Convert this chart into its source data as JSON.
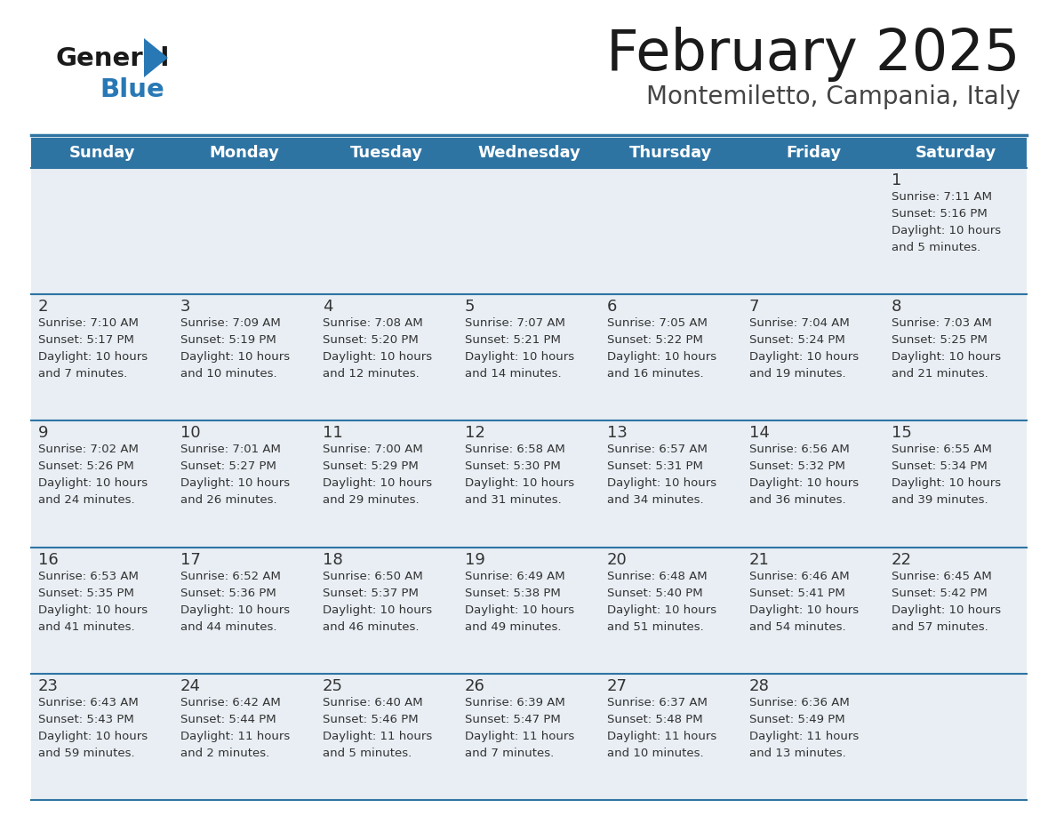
{
  "title": "February 2025",
  "subtitle": "Montemiletto, Campania, Italy",
  "header_bg": "#2e74a3",
  "header_text_color": "#ffffff",
  "day_names": [
    "Sunday",
    "Monday",
    "Tuesday",
    "Wednesday",
    "Thursday",
    "Friday",
    "Saturday"
  ],
  "bg_color": "#ffffff",
  "cell_bg": "#e8eef4",
  "row_line_color": "#2e74a3",
  "text_color": "#333333",
  "days": [
    {
      "day": 1,
      "col": 6,
      "row": 0,
      "sunrise": "7:11 AM",
      "sunset": "5:16 PM",
      "daylight_h": "10 hours",
      "daylight_m": "5 minutes."
    },
    {
      "day": 2,
      "col": 0,
      "row": 1,
      "sunrise": "7:10 AM",
      "sunset": "5:17 PM",
      "daylight_h": "10 hours",
      "daylight_m": "7 minutes."
    },
    {
      "day": 3,
      "col": 1,
      "row": 1,
      "sunrise": "7:09 AM",
      "sunset": "5:19 PM",
      "daylight_h": "10 hours",
      "daylight_m": "10 minutes."
    },
    {
      "day": 4,
      "col": 2,
      "row": 1,
      "sunrise": "7:08 AM",
      "sunset": "5:20 PM",
      "daylight_h": "10 hours",
      "daylight_m": "12 minutes."
    },
    {
      "day": 5,
      "col": 3,
      "row": 1,
      "sunrise": "7:07 AM",
      "sunset": "5:21 PM",
      "daylight_h": "10 hours",
      "daylight_m": "14 minutes."
    },
    {
      "day": 6,
      "col": 4,
      "row": 1,
      "sunrise": "7:05 AM",
      "sunset": "5:22 PM",
      "daylight_h": "10 hours",
      "daylight_m": "16 minutes."
    },
    {
      "day": 7,
      "col": 5,
      "row": 1,
      "sunrise": "7:04 AM",
      "sunset": "5:24 PM",
      "daylight_h": "10 hours",
      "daylight_m": "19 minutes."
    },
    {
      "day": 8,
      "col": 6,
      "row": 1,
      "sunrise": "7:03 AM",
      "sunset": "5:25 PM",
      "daylight_h": "10 hours",
      "daylight_m": "21 minutes."
    },
    {
      "day": 9,
      "col": 0,
      "row": 2,
      "sunrise": "7:02 AM",
      "sunset": "5:26 PM",
      "daylight_h": "10 hours",
      "daylight_m": "24 minutes."
    },
    {
      "day": 10,
      "col": 1,
      "row": 2,
      "sunrise": "7:01 AM",
      "sunset": "5:27 PM",
      "daylight_h": "10 hours",
      "daylight_m": "26 minutes."
    },
    {
      "day": 11,
      "col": 2,
      "row": 2,
      "sunrise": "7:00 AM",
      "sunset": "5:29 PM",
      "daylight_h": "10 hours",
      "daylight_m": "29 minutes."
    },
    {
      "day": 12,
      "col": 3,
      "row": 2,
      "sunrise": "6:58 AM",
      "sunset": "5:30 PM",
      "daylight_h": "10 hours",
      "daylight_m": "31 minutes."
    },
    {
      "day": 13,
      "col": 4,
      "row": 2,
      "sunrise": "6:57 AM",
      "sunset": "5:31 PM",
      "daylight_h": "10 hours",
      "daylight_m": "34 minutes."
    },
    {
      "day": 14,
      "col": 5,
      "row": 2,
      "sunrise": "6:56 AM",
      "sunset": "5:32 PM",
      "daylight_h": "10 hours",
      "daylight_m": "36 minutes."
    },
    {
      "day": 15,
      "col": 6,
      "row": 2,
      "sunrise": "6:55 AM",
      "sunset": "5:34 PM",
      "daylight_h": "10 hours",
      "daylight_m": "39 minutes."
    },
    {
      "day": 16,
      "col": 0,
      "row": 3,
      "sunrise": "6:53 AM",
      "sunset": "5:35 PM",
      "daylight_h": "10 hours",
      "daylight_m": "41 minutes."
    },
    {
      "day": 17,
      "col": 1,
      "row": 3,
      "sunrise": "6:52 AM",
      "sunset": "5:36 PM",
      "daylight_h": "10 hours",
      "daylight_m": "44 minutes."
    },
    {
      "day": 18,
      "col": 2,
      "row": 3,
      "sunrise": "6:50 AM",
      "sunset": "5:37 PM",
      "daylight_h": "10 hours",
      "daylight_m": "46 minutes."
    },
    {
      "day": 19,
      "col": 3,
      "row": 3,
      "sunrise": "6:49 AM",
      "sunset": "5:38 PM",
      "daylight_h": "10 hours",
      "daylight_m": "49 minutes."
    },
    {
      "day": 20,
      "col": 4,
      "row": 3,
      "sunrise": "6:48 AM",
      "sunset": "5:40 PM",
      "daylight_h": "10 hours",
      "daylight_m": "51 minutes."
    },
    {
      "day": 21,
      "col": 5,
      "row": 3,
      "sunrise": "6:46 AM",
      "sunset": "5:41 PM",
      "daylight_h": "10 hours",
      "daylight_m": "54 minutes."
    },
    {
      "day": 22,
      "col": 6,
      "row": 3,
      "sunrise": "6:45 AM",
      "sunset": "5:42 PM",
      "daylight_h": "10 hours",
      "daylight_m": "57 minutes."
    },
    {
      "day": 23,
      "col": 0,
      "row": 4,
      "sunrise": "6:43 AM",
      "sunset": "5:43 PM",
      "daylight_h": "10 hours",
      "daylight_m": "59 minutes."
    },
    {
      "day": 24,
      "col": 1,
      "row": 4,
      "sunrise": "6:42 AM",
      "sunset": "5:44 PM",
      "daylight_h": "11 hours",
      "daylight_m": "2 minutes."
    },
    {
      "day": 25,
      "col": 2,
      "row": 4,
      "sunrise": "6:40 AM",
      "sunset": "5:46 PM",
      "daylight_h": "11 hours",
      "daylight_m": "5 minutes."
    },
    {
      "day": 26,
      "col": 3,
      "row": 4,
      "sunrise": "6:39 AM",
      "sunset": "5:47 PM",
      "daylight_h": "11 hours",
      "daylight_m": "7 minutes."
    },
    {
      "day": 27,
      "col": 4,
      "row": 4,
      "sunrise": "6:37 AM",
      "sunset": "5:48 PM",
      "daylight_h": "11 hours",
      "daylight_m": "10 minutes."
    },
    {
      "day": 28,
      "col": 5,
      "row": 4,
      "sunrise": "6:36 AM",
      "sunset": "5:49 PM",
      "daylight_h": "11 hours",
      "daylight_m": "13 minutes."
    }
  ]
}
